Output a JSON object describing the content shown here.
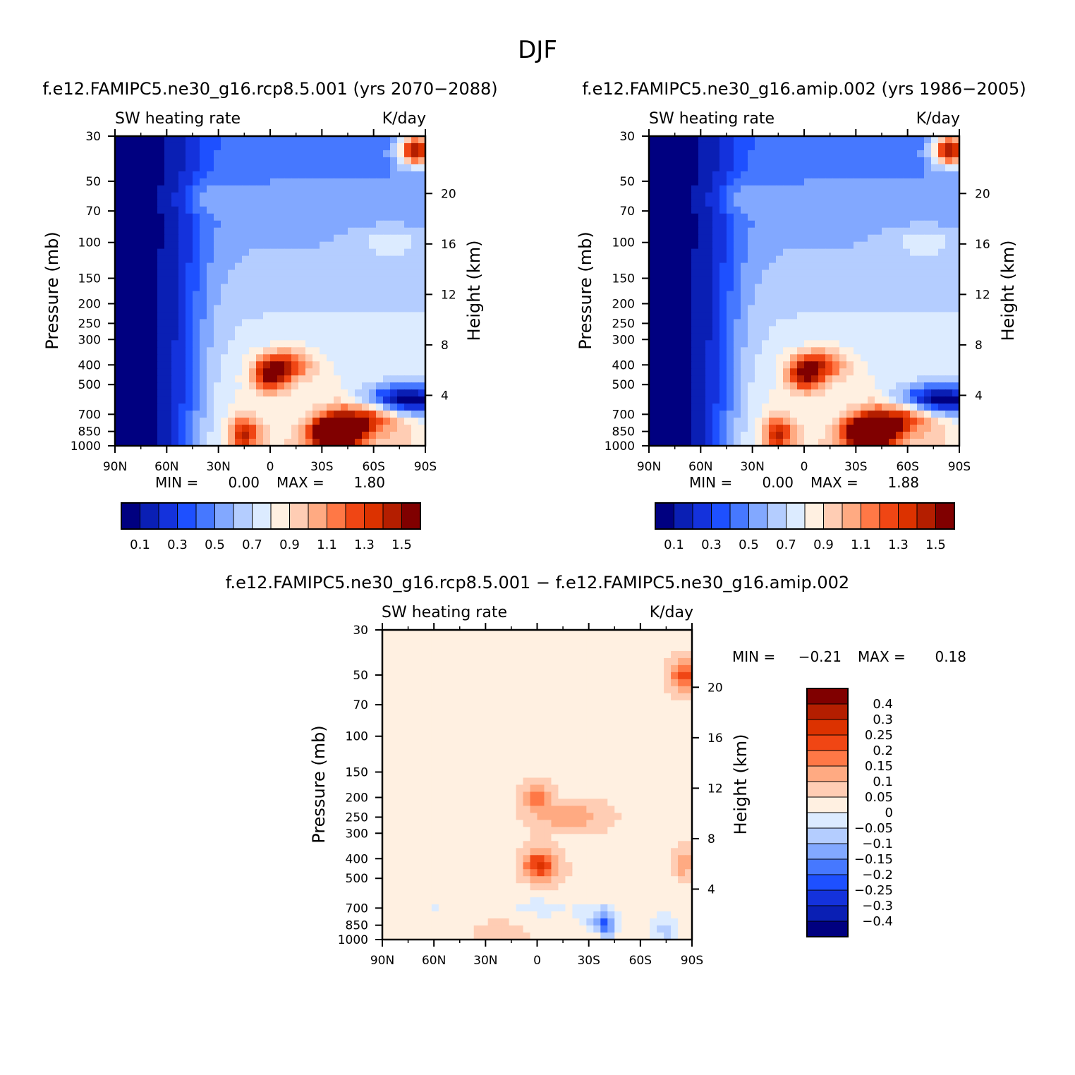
{
  "figure": {
    "title": "DJF",
    "diff_title": "f.e12.FAMIPC5.ne30_g16.rcp8.5.001 − f.e12.FAMIPC5.ne30_g16.amip.002"
  },
  "colors": {
    "abs_scale": [
      "#000080",
      "#0a1fb4",
      "#1432dc",
      "#1e50ff",
      "#4678ff",
      "#82a8ff",
      "#b4cdff",
      "#dcebff",
      "#fff0e1",
      "#ffcdb4",
      "#ffaa82",
      "#ff7846",
      "#f04614",
      "#dc3200",
      "#b41e00",
      "#800000"
    ],
    "diff_scale": [
      "#000080",
      "#0a1fb4",
      "#1432dc",
      "#1e50ff",
      "#4678ff",
      "#82a8ff",
      "#b4cdff",
      "#dcebff",
      "#fff0e1",
      "#ffcdb4",
      "#ffaa82",
      "#ff7846",
      "#f04614",
      "#dc3200",
      "#b41e00",
      "#800000"
    ]
  },
  "chart_data": [
    {
      "type": "heatmap",
      "title": "f.e12.FAMIPC5.ne30_g16.rcp8.5.001 (yrs 2070−2088)",
      "left_label": "SW heating rate",
      "right_label": "K/day",
      "ylabel": "Pressure (mb)",
      "ylabel_right": "Height (km)",
      "x_ticks": [
        "90N",
        "60N",
        "30N",
        "0",
        "30S",
        "60S",
        "90S"
      ],
      "y_ticks": [
        "30",
        "50",
        "70",
        "100",
        "150",
        "200",
        "250",
        "300",
        "400",
        "500",
        "700",
        "850",
        "1000"
      ],
      "y_ticks_right": [
        "20",
        "16",
        "12",
        "8",
        "4"
      ],
      "min_label": "MIN =",
      "min_value": "0.00",
      "max_label": "MAX =",
      "max_value": "1.80",
      "levels": [
        "0.1",
        "0.3",
        "0.5",
        "0.7",
        "0.9",
        "1.1",
        "1.3",
        "1.5"
      ],
      "field": [
        {
          "lat": -88,
          "p": 600,
          "v": -1.0,
          "r": 20
        },
        {
          "lat": -75,
          "p": 600,
          "v": -0.8,
          "r": 16
        },
        {
          "lat": -60,
          "p": 600,
          "v": -0.5,
          "r": 14
        },
        {
          "lat": 15,
          "p": 870,
          "v": 1.1,
          "r": 8
        },
        {
          "lat": -35,
          "p": 870,
          "v": 1.8,
          "r": 12
        },
        {
          "lat": -45,
          "p": 840,
          "v": 1.2,
          "r": 14
        },
        {
          "lat": 0,
          "p": 450,
          "v": 1.2,
          "r": 10
        },
        {
          "lat": -10,
          "p": 400,
          "v": 0.9,
          "r": 15
        },
        {
          "lat": -60,
          "p": 700,
          "v": 0.95,
          "r": 20
        },
        {
          "lat": -85,
          "p": 35,
          "v": 1.9,
          "r": 10
        },
        {
          "lat": -70,
          "p": 100,
          "v": 0.3,
          "r": 20
        },
        {
          "lat": 40,
          "p": 60,
          "v": 0.3,
          "r": 15
        }
      ]
    },
    {
      "type": "heatmap",
      "title": "f.e12.FAMIPC5.ne30_g16.amip.002 (yrs 1986−2005)",
      "left_label": "SW heating rate",
      "right_label": "K/day",
      "ylabel": "Pressure (mb)",
      "ylabel_right": "Height (km)",
      "x_ticks": [
        "90N",
        "60N",
        "30N",
        "0",
        "30S",
        "60S",
        "90S"
      ],
      "y_ticks": [
        "30",
        "50",
        "70",
        "100",
        "150",
        "200",
        "250",
        "300",
        "400",
        "500",
        "700",
        "850",
        "1000"
      ],
      "y_ticks_right": [
        "20",
        "16",
        "12",
        "8",
        "4"
      ],
      "min_label": "MIN =",
      "min_value": "0.00",
      "max_label": "MAX =",
      "max_value": "1.88",
      "levels": [
        "0.1",
        "0.3",
        "0.5",
        "0.7",
        "0.9",
        "1.1",
        "1.3",
        "1.5"
      ],
      "field": [
        {
          "lat": -88,
          "p": 600,
          "v": -1.0,
          "r": 20
        },
        {
          "lat": -75,
          "p": 600,
          "v": -0.8,
          "r": 16
        },
        {
          "lat": -60,
          "p": 600,
          "v": -0.5,
          "r": 14
        },
        {
          "lat": 15,
          "p": 870,
          "v": 1.1,
          "r": 8
        },
        {
          "lat": -35,
          "p": 870,
          "v": 1.88,
          "r": 12
        },
        {
          "lat": -45,
          "p": 840,
          "v": 1.2,
          "r": 14
        },
        {
          "lat": 0,
          "p": 450,
          "v": 1.1,
          "r": 10
        },
        {
          "lat": -10,
          "p": 400,
          "v": 0.9,
          "r": 15
        },
        {
          "lat": -60,
          "p": 700,
          "v": 0.95,
          "r": 20
        },
        {
          "lat": -85,
          "p": 35,
          "v": 1.9,
          "r": 10
        },
        {
          "lat": -70,
          "p": 100,
          "v": 0.3,
          "r": 20
        },
        {
          "lat": 40,
          "p": 60,
          "v": 0.3,
          "r": 15
        }
      ]
    },
    {
      "type": "heatmap",
      "title": "",
      "left_label": "SW heating rate",
      "right_label": "K/day",
      "ylabel": "Pressure (mb)",
      "ylabel_right": "Height (km)",
      "x_ticks": [
        "90N",
        "60N",
        "30N",
        "0",
        "30S",
        "60S",
        "90S"
      ],
      "y_ticks": [
        "30",
        "50",
        "70",
        "100",
        "150",
        "200",
        "250",
        "300",
        "400",
        "500",
        "700",
        "850",
        "1000"
      ],
      "y_ticks_right": [
        "20",
        "16",
        "12",
        "8",
        "4"
      ],
      "min_label": "MIN =",
      "min_value": "−0.21",
      "max_label": "MAX =",
      "max_value": "0.18",
      "levels": [
        "−0.4",
        "−0.3",
        "−0.25",
        "−0.2",
        "−0.15",
        "−0.1",
        "−0.05",
        "0",
        "0.05",
        "0.1",
        "0.15",
        "0.2",
        "0.25",
        "0.3",
        "0.4"
      ],
      "field": [
        {
          "lat": 0,
          "p": 200,
          "v": 0.14,
          "r": 8
        },
        {
          "lat": -20,
          "p": 250,
          "v": 0.1,
          "r": 22
        },
        {
          "lat": 0,
          "p": 420,
          "v": 0.16,
          "r": 8
        },
        {
          "lat": -5,
          "p": 450,
          "v": 0.1,
          "r": 12
        },
        {
          "lat": -85,
          "p": 50,
          "v": 0.2,
          "r": 8
        },
        {
          "lat": -85,
          "p": 420,
          "v": 0.12,
          "r": 5
        },
        {
          "lat": 0,
          "p": 700,
          "v": -0.04,
          "r": 30
        },
        {
          "lat": 60,
          "p": 700,
          "v": -0.03,
          "r": 8
        },
        {
          "lat": -35,
          "p": 850,
          "v": -0.15,
          "r": 10
        },
        {
          "lat": -40,
          "p": 870,
          "v": -0.2,
          "r": 5
        },
        {
          "lat": -35,
          "p": 960,
          "v": 0.12,
          "r": 10
        },
        {
          "lat": -75,
          "p": 900,
          "v": -0.1,
          "r": 8
        },
        {
          "lat": 20,
          "p": 950,
          "v": 0.07,
          "r": 15
        }
      ]
    }
  ]
}
